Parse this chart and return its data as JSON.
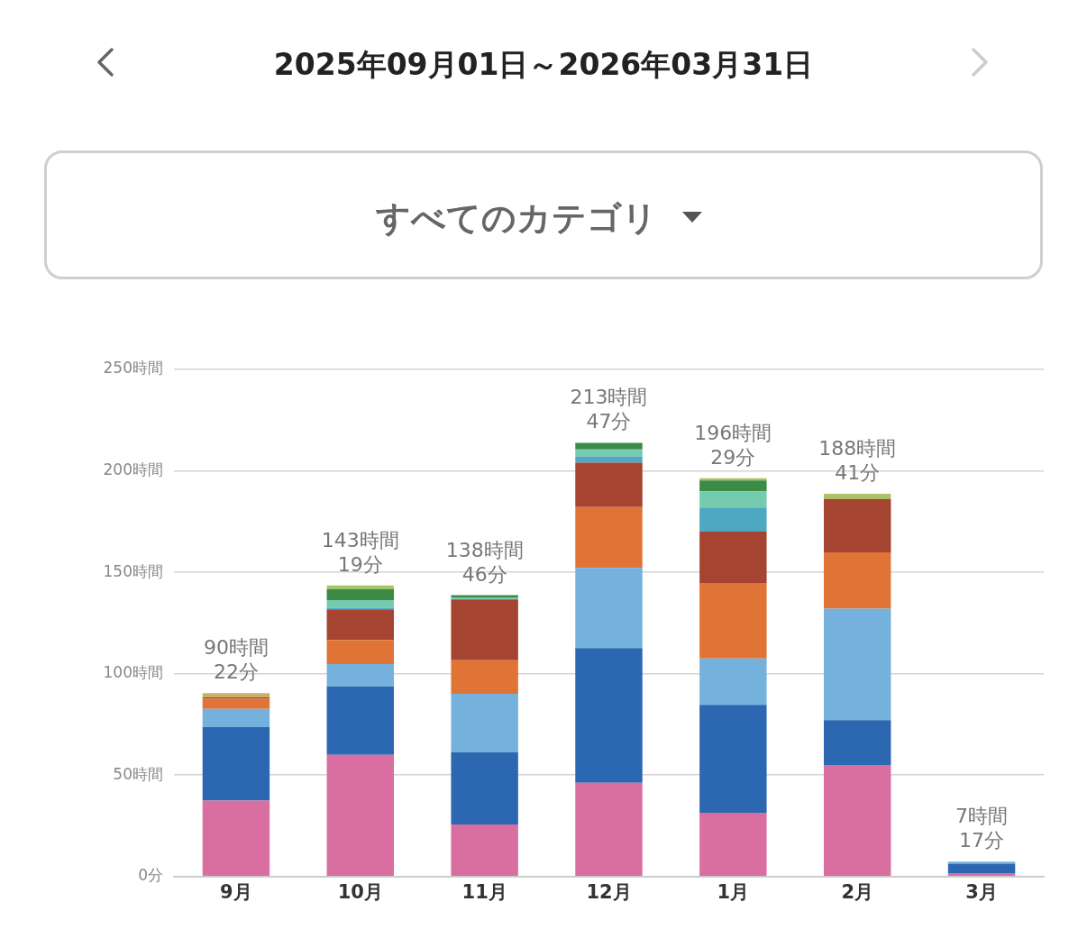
{
  "chart_data": {
    "type": "bar",
    "title": "2025年09月01日～2026年03月31日",
    "subtitle": "すべてのカテゴリ",
    "stacked": true,
    "categories": [
      "9月",
      "10月",
      "11月",
      "12月",
      "1月",
      "2月",
      "3月"
    ],
    "series": [
      {
        "color": "#d96fa0",
        "values": [
          37.5,
          60.0,
          25.7,
          46.2,
          31.4,
          55.0,
          1.7
        ]
      },
      {
        "color": "#2c67b1",
        "values": [
          36.2,
          33.7,
          35.6,
          66.4,
          53.2,
          22.1,
          4.7
        ]
      },
      {
        "color": "#74b2dd",
        "values": [
          8.9,
          11.0,
          28.8,
          39.6,
          22.9,
          55.0,
          0.9
        ]
      },
      {
        "color": "#e07437",
        "values": [
          5.2,
          11.9,
          16.5,
          29.9,
          37.2,
          27.7,
          null
        ]
      },
      {
        "color": "#a44431",
        "values": [
          0.5,
          15.1,
          30.0,
          21.9,
          25.3,
          26.3,
          null
        ]
      },
      {
        "color": "#4ea8c2",
        "values": [
          null,
          0.8,
          null,
          3.1,
          11.9,
          null,
          null
        ]
      },
      {
        "color": "#74cbb0",
        "values": [
          null,
          3.8,
          1.0,
          3.5,
          8.0,
          null,
          null
        ]
      },
      {
        "color": "#3b8a45",
        "values": [
          null,
          5.4,
          1.1,
          3.2,
          5.3,
          null,
          null
        ]
      },
      {
        "color": "#a8c463",
        "values": [
          null,
          1.8,
          null,
          null,
          1.2,
          2.6,
          null
        ]
      },
      {
        "color": "#c9b069",
        "values": [
          2.1,
          null,
          null,
          null,
          null,
          null,
          null
        ]
      }
    ],
    "totals": [
      "90時間\n22分",
      "143時間\n19分",
      "138時間\n46分",
      "213時間\n47分",
      "196時間\n29分",
      "188時間\n41分",
      "7時間\n17分"
    ],
    "ylim": [
      0,
      250
    ],
    "yticks": [
      {
        "value": 0,
        "label": "0分"
      },
      {
        "value": 50,
        "label": "50時間"
      },
      {
        "value": 100,
        "label": "100時間"
      },
      {
        "value": 150,
        "label": "150時間"
      },
      {
        "value": 200,
        "label": "200時間"
      },
      {
        "value": 250,
        "label": "250時間"
      }
    ],
    "grid": "y",
    "legend": false
  }
}
